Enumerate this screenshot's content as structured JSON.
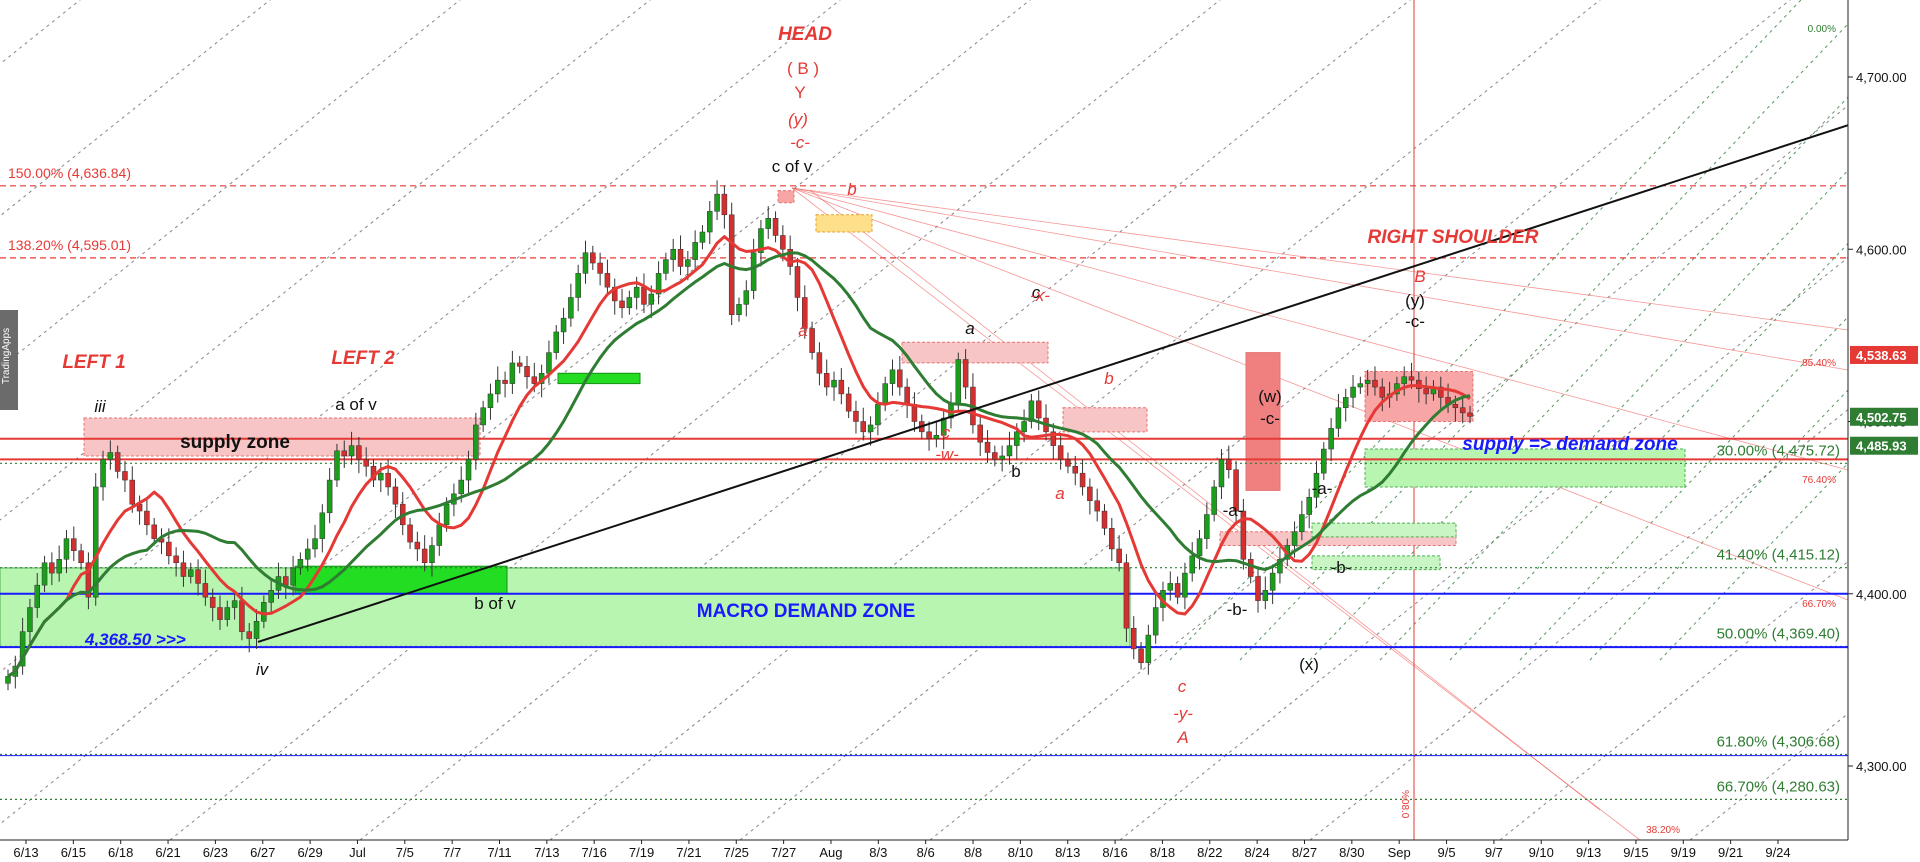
{
  "watermark": "TradingApps",
  "chart_data": {
    "type": "candlestick",
    "price_axis": {
      "ticks": [
        "4,700.00",
        "4,600.00",
        "4,500.00",
        "4,400.00",
        "4,300.00"
      ],
      "tick_values": [
        4700,
        4600,
        4500,
        4400,
        4300
      ],
      "range": [
        4240,
        4745
      ],
      "price_tags": [
        {
          "label": "4,538.63",
          "value": 4538.63,
          "color": "#e53935"
        },
        {
          "label": "4,502.75",
          "value": 4502.75,
          "color": "#2e7d32"
        },
        {
          "label": "4,485.93",
          "value": 4485.93,
          "color": "#2e7d32"
        }
      ]
    },
    "time_axis": {
      "labels": [
        "6/13",
        "6/15",
        "6/18",
        "6/21",
        "6/23",
        "6/27",
        "6/29",
        "Jul",
        "7/5",
        "7/7",
        "7/11",
        "7/13",
        "7/16",
        "7/19",
        "7/21",
        "7/25",
        "7/27",
        "Aug",
        "8/3",
        "8/6",
        "8/8",
        "8/10",
        "8/13",
        "8/16",
        "8/18",
        "8/22",
        "8/24",
        "8/27",
        "8/30",
        "Sep",
        "9/5",
        "9/7",
        "9/10",
        "9/13",
        "9/15",
        "9/19",
        "9/21",
        "9/24"
      ]
    },
    "fibonacci_levels": [
      {
        "label": "150.00% (4,636.84)",
        "value": 4636.84,
        "color": "#e53935"
      },
      {
        "label": "138.20% (4,595.01)",
        "value": 4595.01,
        "color": "#e53935"
      },
      {
        "label": "30.00% (4,475.72)",
        "value": 4475.72,
        "color": "#2e7d32"
      },
      {
        "label": "41.40% (4,415.12)",
        "value": 4415.12,
        "color": "#2e7d32"
      },
      {
        "label": "50.00% (4,369.40)",
        "value": 4369.4,
        "color": "#2e7d32"
      },
      {
        "label": "61.80% (4,306.68)",
        "value": 4306.68,
        "color": "#2e7d32"
      },
      {
        "label": "66.70% (4,280.63)",
        "value": 4280.63,
        "color": "#2e7d32"
      }
    ],
    "fan_labels": [
      "0.00%",
      "85.40%",
      "76.40%",
      "66.70%",
      "38.20%",
      "%08.0"
    ],
    "horizontal_levels": [
      {
        "value": 4490,
        "color": "#e53935"
      },
      {
        "value": 4478,
        "color": "#e53935"
      },
      {
        "value": 4400,
        "color": "#1a1aff"
      },
      {
        "value": 4369,
        "color": "#1a1aff"
      },
      {
        "value": 4306,
        "color": "#1a1aff"
      }
    ],
    "zones": {
      "supply_zone": "supply zone",
      "macro_demand_zone": "MACRO DEMAND ZONE",
      "supply_demand_zone": "supply => demand zone",
      "support_price": "4,368.50 >>>"
    },
    "pattern_labels": {
      "left1": "LEFT 1",
      "left2": "LEFT 2",
      "head": "HEAD",
      "right_shoulder": "RIGHT SHOULDER"
    },
    "wave_labels": {
      "iii": "iii",
      "a_of_v": "a of v",
      "b_of_v": "b of v",
      "iv": "iv",
      "c_of_v": "c of v",
      "head_b": "( B )",
      "head_y": "Y",
      "head_yy": "(y)",
      "head_c": "-c-",
      "b1": "b",
      "a1": "a",
      "a2": "a",
      "c2": "c",
      "x1": "-x-",
      "c3": "c",
      "w1": "-w-",
      "b2": "b",
      "a3": "a",
      "b3": "b",
      "c_low": "c",
      "y_low": "-y-",
      "a_low": "A",
      "w_paren": "(w)",
      "c_w": "-c-",
      "a4": "-a-",
      "b4": "-b-",
      "a5": "-a-",
      "b5": "-b-",
      "x_paren": "(x)",
      "b_right": "B",
      "y_right": "(y)",
      "c_right": "-c-"
    },
    "series": [
      {
        "name": "",
        "type": "candles"
      },
      {
        "name": "",
        "type": "moving_average",
        "color": "#e53935"
      },
      {
        "name": "",
        "type": "moving_average",
        "color": "#2e7d32"
      }
    ],
    "closes": [
      4352,
      4358,
      4378,
      4392,
      4405,
      4418,
      4412,
      4420,
      4432,
      4425,
      4418,
      4398,
      4462,
      4478,
      4482,
      4471,
      4466,
      4452,
      4448,
      4440,
      4432,
      4430,
      4422,
      4418,
      4410,
      4414,
      4406,
      4398,
      4392,
      4385,
      4392,
      4396,
      4378,
      4374,
      4384,
      4395,
      4402,
      4410,
      4405,
      4415,
      4420,
      4426,
      4432,
      4447,
      4466,
      4483,
      4480,
      4486,
      4478,
      4474,
      4466,
      4470,
      4462,
      4452,
      4440,
      4430,
      4426,
      4418,
      4428,
      4440,
      4452,
      4458,
      4466,
      4478,
      4498,
      4508,
      4516,
      4524,
      4522,
      4534,
      4532,
      4526,
      4522,
      4528,
      4540,
      4552,
      4560,
      4572,
      4586,
      4598,
      4592,
      4586,
      4578,
      4570,
      4566,
      4572,
      4578,
      4568,
      4574,
      4586,
      4594,
      4600,
      4590,
      4594,
      4604,
      4610,
      4622,
      4632,
      4620,
      4562,
      4568,
      4576,
      4598,
      4612,
      4618,
      4608,
      4600,
      4590,
      4572,
      4554,
      4540,
      4528,
      4520,
      4524,
      4516,
      4506,
      4500,
      4494,
      4498,
      4510,
      4522,
      4530,
      4520,
      4510,
      4500,
      4494,
      4490,
      4492,
      4502,
      4510,
      4536,
      4520,
      4498,
      4488,
      4482,
      4478,
      4480,
      4486,
      4494,
      4500,
      4512,
      4502,
      4494,
      4486,
      4478,
      4474,
      4470,
      4462,
      4454,
      4448,
      4438,
      4426,
      4418,
      4380,
      4368,
      4360,
      4376,
      4392,
      4402,
      4406,
      4398,
      4412,
      4422,
      4432,
      4446,
      4462,
      4478,
      4472,
      4448,
      4420,
      4410,
      4396,
      4402,
      4412,
      4420,
      4428,
      4436,
      4446,
      4456,
      4470,
      4484,
      4496,
      4508,
      4514,
      4520,
      4522,
      4524,
      4520,
      4514,
      4516,
      4522,
      4526,
      4524,
      4519,
      4516,
      4520,
      4514,
      4510,
      4508,
      4505,
      4503
    ]
  }
}
